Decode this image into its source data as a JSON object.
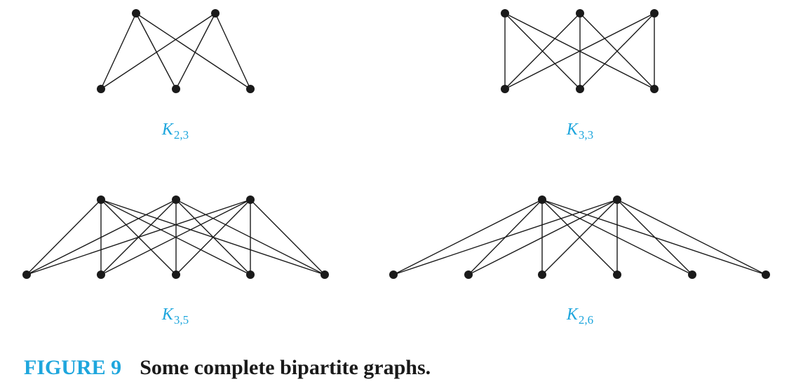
{
  "colors": {
    "accent": "#1ea6dd",
    "ink": "#1a1a1a"
  },
  "graphs": [
    {
      "id": "k23",
      "label_main": "K",
      "label_sub": "2,3",
      "m": 2,
      "n": 3
    },
    {
      "id": "k33",
      "label_main": "K",
      "label_sub": "3,3",
      "m": 3,
      "n": 3
    },
    {
      "id": "k35",
      "label_main": "K",
      "label_sub": "3,5",
      "m": 3,
      "n": 5
    },
    {
      "id": "k26",
      "label_main": "K",
      "label_sub": "2,6",
      "m": 2,
      "n": 6
    }
  ],
  "caption": {
    "number": "FIGURE 9",
    "text": "Some complete bipartite graphs."
  }
}
